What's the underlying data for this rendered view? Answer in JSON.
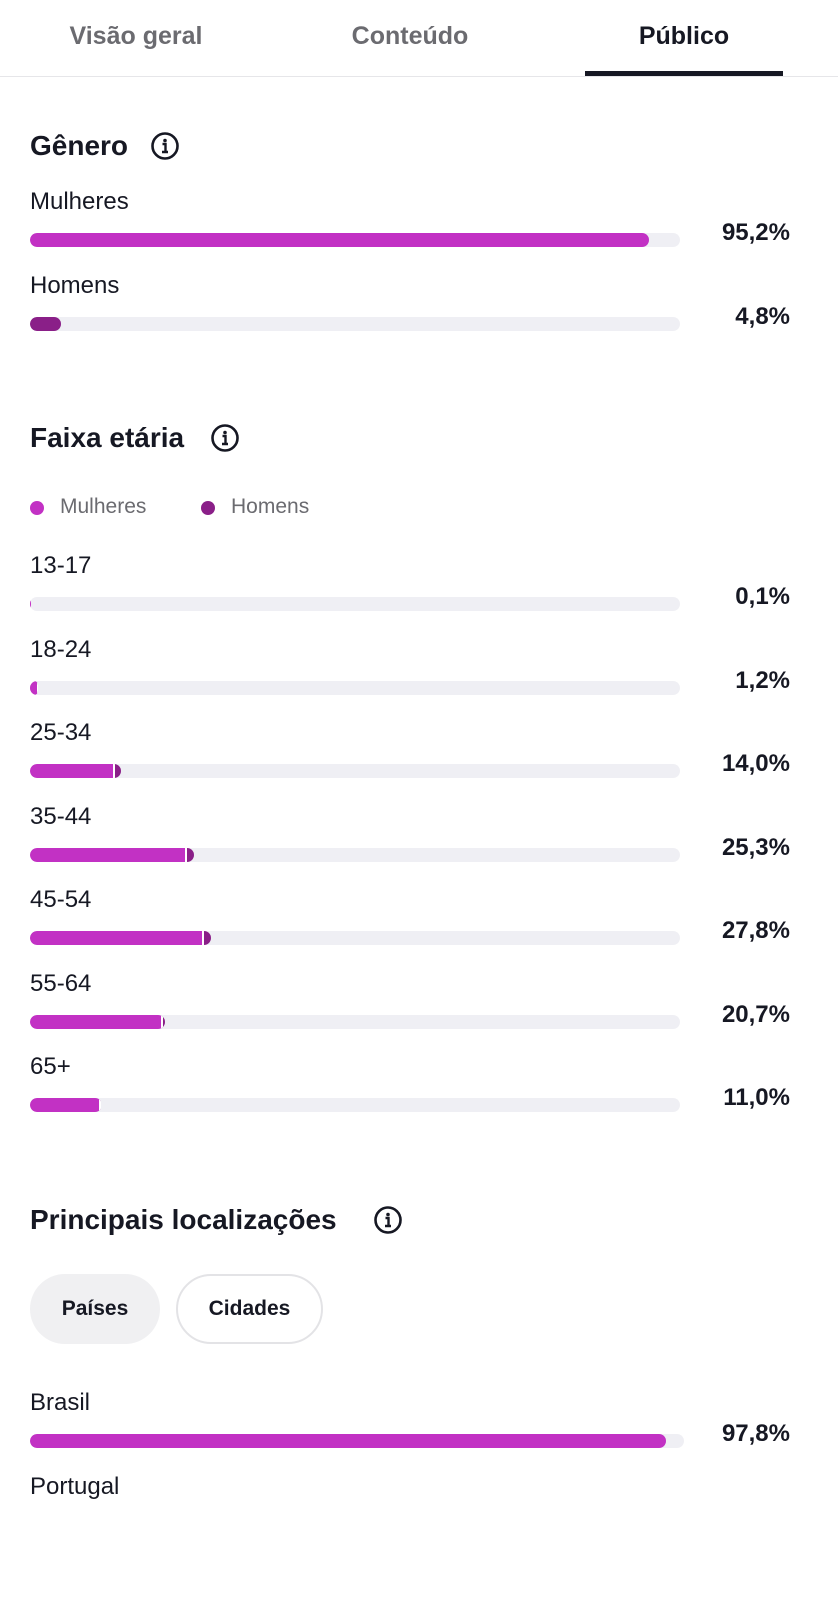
{
  "tabs": [
    "Visão geral",
    "Conteúdo",
    "Público"
  ],
  "active_tab": 2,
  "gender": {
    "title": "Gênero",
    "rows": [
      {
        "label": "Mulheres",
        "value": 95.2,
        "value_label": "95,2%",
        "color": "#c231c4"
      },
      {
        "label": "Homens",
        "value": 4.8,
        "value_label": "4,8%",
        "color": "#8a1f88"
      }
    ]
  },
  "age": {
    "title": "Faixa etária",
    "legend": [
      {
        "name": "Mulheres",
        "color": "#c231c4"
      },
      {
        "name": "Homens",
        "color": "#8a1f88"
      }
    ],
    "rows": [
      {
        "label": "13-17",
        "value": 0.1,
        "value_label": "0,1%",
        "segments": [
          0.1,
          0
        ]
      },
      {
        "label": "18-24",
        "value": 1.2,
        "value_label": "1,2%",
        "segments": [
          1.0,
          0.2
        ]
      },
      {
        "label": "25-34",
        "value": 14.0,
        "value_label": "14,0%",
        "segments": [
          12.8,
          1.2
        ]
      },
      {
        "label": "35-44",
        "value": 25.3,
        "value_label": "25,3%",
        "segments": [
          23.8,
          1.5
        ]
      },
      {
        "label": "45-54",
        "value": 27.8,
        "value_label": "27,8%",
        "segments": [
          26.5,
          1.3
        ]
      },
      {
        "label": "55-64",
        "value": 20.7,
        "value_label": "20,7%",
        "segments": [
          20.1,
          0.6
        ]
      },
      {
        "label": "65+",
        "value": 11.0,
        "value_label": "11,0%",
        "segments": [
          10.6,
          0.4
        ]
      }
    ]
  },
  "locations": {
    "title": "Principais localizações",
    "filters": [
      "Países",
      "Cidades"
    ],
    "rows": [
      {
        "label": "Brasil",
        "value": 97.8,
        "value_label": "97,8%",
        "color": "#c231c4"
      },
      {
        "label": "Portugal"
      }
    ]
  }
}
